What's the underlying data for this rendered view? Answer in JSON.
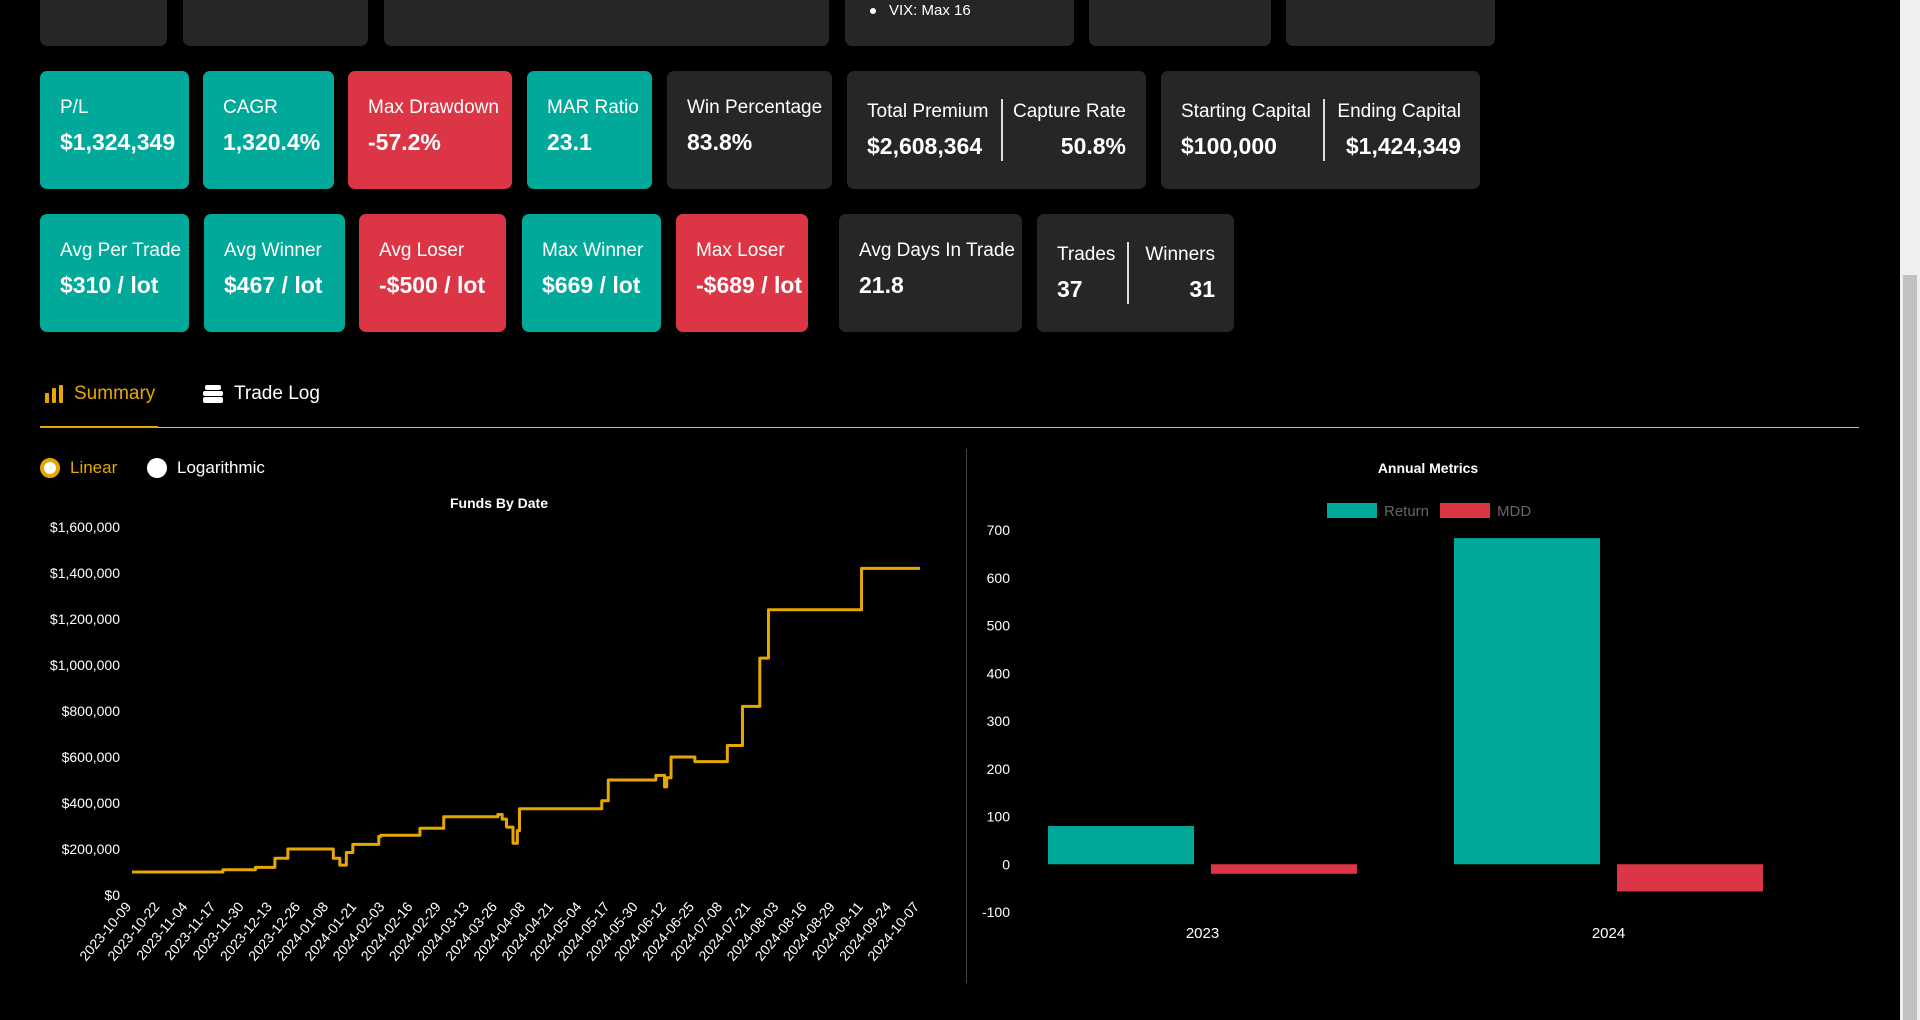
{
  "top_partial": {
    "vix_item": "VIX: Max 16"
  },
  "metrics_row1": [
    {
      "label": "P/L",
      "value": "$1,324,349"
    },
    {
      "label": "CAGR",
      "value": "1,320.4%"
    },
    {
      "label": "Max Drawdown",
      "value": "-57.2%"
    },
    {
      "label": "MAR Ratio",
      "value": "23.1"
    },
    {
      "label": "Win Percentage",
      "value": "83.8%"
    }
  ],
  "premium_card": {
    "left_label": "Total Premium",
    "left_value": "$2,608,364",
    "right_label": "Capture Rate",
    "right_value": "50.8%"
  },
  "capital_card": {
    "left_label": "Starting Capital",
    "left_value": "$100,000",
    "right_label": "Ending Capital",
    "right_value": "$1,424,349"
  },
  "metrics_row2": [
    {
      "label": "Avg Per Trade",
      "value": "$310 / lot"
    },
    {
      "label": "Avg Winner",
      "value": "$467 / lot"
    },
    {
      "label": "Avg Loser",
      "value": "-$500 / lot"
    },
    {
      "label": "Max Winner",
      "value": "$669 / lot"
    },
    {
      "label": "Max Loser",
      "value": "-$689 / lot"
    },
    {
      "label": "Avg Days In Trade",
      "value": "21.8"
    }
  ],
  "trades_card": {
    "left_label": "Trades",
    "left_value": "37",
    "right_label": "Winners",
    "right_value": "31"
  },
  "tabs": {
    "summary": "Summary",
    "trade_log": "Trade Log"
  },
  "scale_toggle": {
    "linear": "Linear",
    "logarithmic": "Logarithmic",
    "selected": "Linear"
  },
  "colors": {
    "teal": "#00a99a",
    "red": "#dc3545",
    "gold": "#e6a800",
    "dark_card": "#262626"
  },
  "chart_data": [
    {
      "type": "line",
      "title": "Funds By Date",
      "y_ticks": [
        "$0",
        "$200,000",
        "$400,000",
        "$600,000",
        "$800,000",
        "$1,000,000",
        "$1,200,000",
        "$1,400,000",
        "$1,600,000"
      ],
      "ylim": [
        0,
        1600000
      ],
      "x_ticks": [
        "2023-10-09",
        "2023-10-22",
        "2023-11-04",
        "2023-11-17",
        "2023-11-30",
        "2023-12-13",
        "2023-12-26",
        "2024-01-08",
        "2024-01-21",
        "2024-02-03",
        "2024-02-16",
        "2024-02-29",
        "2024-03-13",
        "2024-03-26",
        "2024-04-08",
        "2024-04-21",
        "2024-05-04",
        "2024-05-17",
        "2024-05-30",
        "2024-06-12",
        "2024-06-25",
        "2024-07-08",
        "2024-07-21",
        "2024-08-03",
        "2024-08-16",
        "2024-08-29",
        "2024-09-11",
        "2024-09-24",
        "2024-10-07"
      ],
      "x": [
        "2023-10-09",
        "2023-11-04",
        "2023-11-20",
        "2023-12-05",
        "2023-12-14",
        "2023-12-20",
        "2023-12-22",
        "2024-01-06",
        "2024-01-10",
        "2024-01-13",
        "2024-01-16",
        "2024-01-19",
        "2024-01-21",
        "2024-01-29",
        "2024-01-31",
        "2024-02-01",
        "2024-02-18",
        "2024-02-19",
        "2024-02-23",
        "2024-03-01",
        "2024-03-02",
        "2024-03-12",
        "2024-03-13",
        "2024-03-26",
        "2024-03-28",
        "2024-03-30",
        "2024-04-02",
        "2024-04-04",
        "2024-04-05",
        "2024-04-10",
        "2024-04-12",
        "2024-04-13",
        "2024-04-21",
        "2024-05-06",
        "2024-05-13",
        "2024-05-16",
        "2024-05-29",
        "2024-06-01",
        "2024-06-05",
        "2024-06-07",
        "2024-06-11",
        "2024-06-12",
        "2024-06-14",
        "2024-06-25",
        "2024-07-06",
        "2024-07-08",
        "2024-07-10",
        "2024-07-17",
        "2024-07-19",
        "2024-07-22",
        "2024-07-25",
        "2024-07-27",
        "2024-07-29",
        "2024-08-03",
        "2024-08-22",
        "2024-09-08",
        "2024-09-10",
        "2024-10-07"
      ],
      "values": [
        100000,
        100000,
        110000,
        120000,
        160000,
        200000,
        200000,
        200000,
        160000,
        130000,
        185000,
        220000,
        220000,
        220000,
        255000,
        260000,
        260000,
        290000,
        290000,
        340000,
        340000,
        340000,
        340000,
        350000,
        330000,
        295000,
        225000,
        280000,
        375000,
        375000,
        375000,
        375000,
        375000,
        375000,
        410000,
        500000,
        500000,
        500000,
        500000,
        520000,
        470000,
        510000,
        600000,
        580000,
        580000,
        580000,
        650000,
        820000,
        820000,
        820000,
        1030000,
        1030000,
        1240000,
        1240000,
        1240000,
        1240000,
        1420000,
        1420000
      ]
    },
    {
      "type": "bar",
      "title": "Annual Metrics",
      "categories": [
        "2023",
        "2024"
      ],
      "series": [
        {
          "name": "Return",
          "values": [
            80,
            683
          ]
        },
        {
          "name": "MDD",
          "values": [
            -20,
            -57
          ]
        }
      ],
      "ylim": [
        -100,
        700
      ],
      "y_ticks": [
        "-100",
        "0",
        "100",
        "200",
        "300",
        "400",
        "500",
        "600",
        "700"
      ],
      "legend": "top"
    }
  ]
}
